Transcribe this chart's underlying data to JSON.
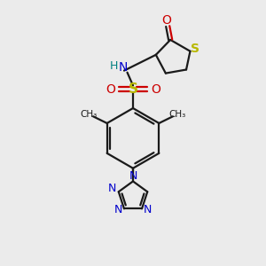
{
  "bg_color": "#ebebeb",
  "bond_color": "#1a1a1a",
  "S_color": "#b8b800",
  "O_color": "#cc0000",
  "N_color": "#0000cc",
  "NH_color": "#008080",
  "H_color": "#008080",
  "figsize": [
    3.0,
    3.0
  ],
  "dpi": 100,
  "xlim": [
    0,
    10
  ],
  "ylim": [
    0,
    10
  ]
}
